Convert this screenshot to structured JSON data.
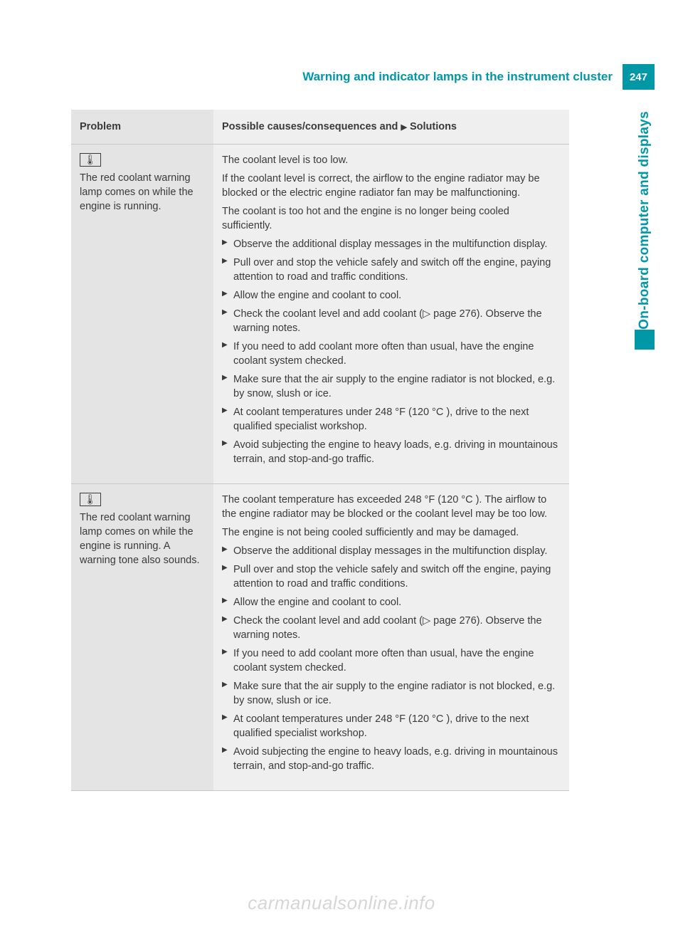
{
  "header": {
    "title": "Warning and indicator lamps in the instrument cluster",
    "page_number": "247"
  },
  "side_tab": {
    "label": "On-board computer and displays"
  },
  "table": {
    "col_problem": "Problem",
    "col_solution_prefix": "Possible causes/consequences and ",
    "col_solution_suffix": " Solutions"
  },
  "row1": {
    "icon": "🌡",
    "problem": "The red coolant warning lamp comes on while the engine is running.",
    "p1": "The coolant level is too low.",
    "p2": "If the coolant level is correct, the airflow to the engine radiator may be blocked or the electric engine radiator fan may be malfunctioning.",
    "p3": "The coolant is too hot and the engine is no longer being cooled sufficiently.",
    "s1": "Observe the additional display messages in the multifunction display.",
    "s2": "Pull over and stop the vehicle safely and switch off the engine, paying attention to road and traffic conditions.",
    "s3": "Allow the engine and coolant to cool.",
    "s4": "Check the coolant level and add coolant (▷ page 276). Observe the warning notes.",
    "s5": "If you need to add coolant more often than usual, have the engine coolant system checked.",
    "s6": "Make sure that the air supply to the engine radiator is not blocked, e.g. by snow, slush or ice.",
    "s7": "At coolant temperatures under 248 °F (120 °C ), drive to the next qualified specialist workshop.",
    "s8": "Avoid subjecting the engine to heavy loads, e.g. driving in mountainous terrain, and stop-and-go traffic."
  },
  "row2": {
    "icon": "🌡",
    "problem": "The red coolant warning lamp comes on while the engine is running. A warning tone also sounds.",
    "p1": "The coolant temperature has exceeded 248 °F (120 °C ). The airflow to the engine radiator may be blocked or the coolant level may be too low.",
    "p2": "The engine is not being cooled sufficiently and may be damaged.",
    "s1": "Observe the additional display messages in the multifunction display.",
    "s2": "Pull over and stop the vehicle safely and switch off the engine, paying attention to road and traffic conditions.",
    "s3": "Allow the engine and coolant to cool.",
    "s4": "Check the coolant level and add coolant (▷ page 276). Observe the warning notes.",
    "s5": "If you need to add coolant more often than usual, have the engine coolant system checked.",
    "s6": "Make sure that the air supply to the engine radiator is not blocked, e.g. by snow, slush or ice.",
    "s7": "At coolant temperatures under 248 °F (120 °C ), drive to the next qualified specialist workshop.",
    "s8": "Avoid subjecting the engine to heavy loads, e.g. driving in mountainous terrain, and stop-and-go traffic."
  },
  "watermark": "carmanualsonline.info"
}
